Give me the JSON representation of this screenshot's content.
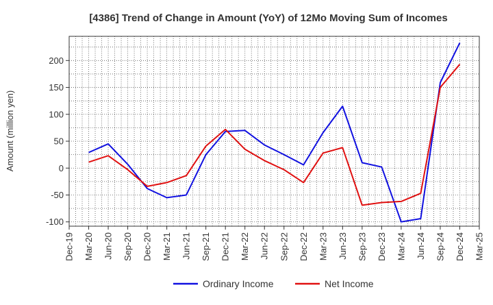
{
  "chart_data": {
    "type": "line",
    "title": "[4386]  Trend of Change in Amount (YoY) of 12Mo Moving Sum of Incomes",
    "xlabel": "",
    "ylabel": "Amount (million yen)",
    "categories": [
      "Dec-19",
      "Mar-20",
      "Jun-20",
      "Sep-20",
      "Dec-20",
      "Mar-21",
      "Jun-21",
      "Sep-21",
      "Dec-21",
      "Mar-22",
      "Jun-22",
      "Sep-22",
      "Dec-22",
      "Mar-23",
      "Jun-23",
      "Sep-23",
      "Dec-23",
      "Mar-24",
      "Jun-24",
      "Sep-24",
      "Dec-24",
      "Mar-25"
    ],
    "ylim": [
      -108,
      245
    ],
    "yticks": [
      -100,
      -50,
      0,
      50,
      100,
      150,
      200
    ],
    "grid": true,
    "series": [
      {
        "name": "Ordinary Income",
        "color": "#1010e0",
        "values": [
          null,
          29,
          45,
          7,
          -38,
          -55,
          -50,
          25,
          68,
          70,
          43,
          25,
          6,
          66,
          115,
          10,
          2,
          -100,
          -94,
          159,
          233,
          null
        ]
      },
      {
        "name": "Net Income",
        "color": "#e01010",
        "values": [
          null,
          11,
          23,
          -3,
          -34,
          -27,
          -14,
          41,
          72,
          35,
          14,
          -3,
          -27,
          28,
          38,
          -69,
          -64,
          -62,
          -47,
          150,
          193,
          null
        ]
      }
    ],
    "legend": [
      "Ordinary Income",
      "Net Income"
    ],
    "legend_position": "bottom-center"
  }
}
